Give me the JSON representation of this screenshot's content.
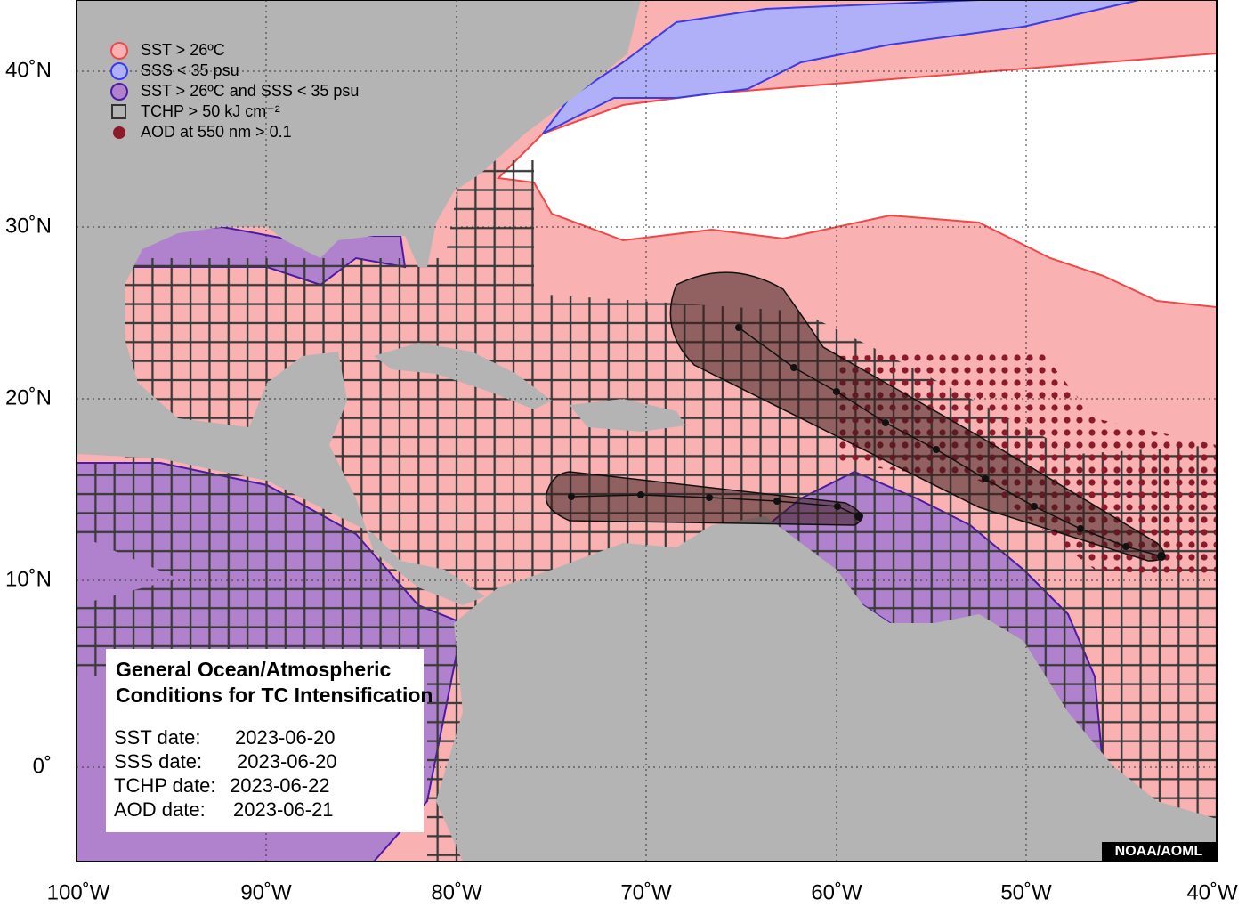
{
  "legend": {
    "items": [
      "SST > 26ºC",
      "SSS < 35 psu",
      "SST > 26ºC and SSS < 35 psu",
      "TCHP > 50 kJ cm⁻²",
      "AOD at 550 nm > 0.1"
    ]
  },
  "info_box": {
    "title_lines": [
      "General Ocean/Atmospheric",
      "Conditions for TC Intensification"
    ],
    "dates": [
      {
        "label": "SST date:",
        "value": "2023-06-20"
      },
      {
        "label": "SSS date:",
        "value": "2023-06-20"
      },
      {
        "label": "TCHP date:",
        "value": "2023-06-22"
      },
      {
        "label": "AOD date:",
        "value": "2023-06-21"
      }
    ]
  },
  "axes": {
    "latitude": [
      "40˚N",
      "30˚N",
      "20˚N",
      "10˚N",
      "0˚"
    ],
    "longitude": [
      "100˚W",
      "90˚W",
      "80˚W",
      "70˚W",
      "60˚W",
      "50˚W",
      "40˚W"
    ]
  },
  "credit": "NOAA/AOML"
}
